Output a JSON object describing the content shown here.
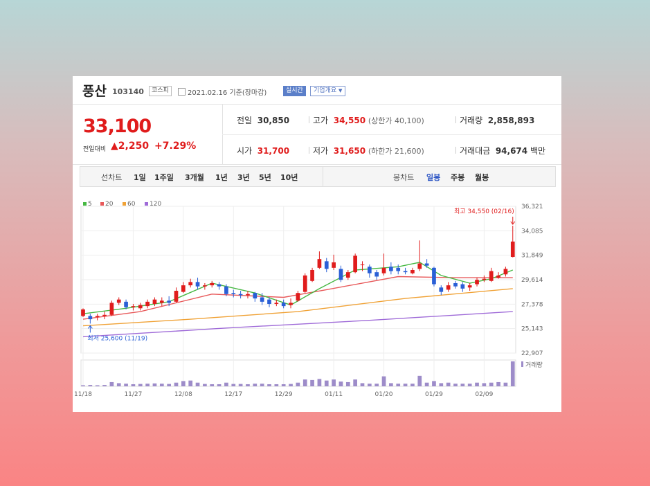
{
  "header": {
    "name": "풍산",
    "code": "103140",
    "market": "코스피",
    "date": "2021.02.16 기준(장마감)",
    "realtime": "실시간",
    "company_info": "기업개요"
  },
  "quote": {
    "price": "33,100",
    "change_label": "전일대비",
    "change_arrow": "▲",
    "change": "2,250",
    "change_pct": "+7.29%",
    "prev_label": "전일",
    "prev": "30,850",
    "high_label": "고가",
    "high": "34,550",
    "upper_limit": "(상한가 40,100)",
    "volume_label": "거래량",
    "volume": "2,858,893",
    "open_label": "시가",
    "open": "31,700",
    "low_label": "저가",
    "low": "31,650",
    "lower_limit": "(하한가 21,600)",
    "amount_label": "거래대금",
    "amount": "94,674",
    "amount_unit": "백만"
  },
  "periods": {
    "line_label": "선차트",
    "line_items": [
      "1일",
      "1주일",
      "3개월",
      "1년",
      "3년",
      "5년",
      "10년"
    ],
    "candle_label": "봉차트",
    "candle_items": [
      "일봉",
      "주봉",
      "월봉"
    ],
    "selected": "일봉"
  },
  "colors": {
    "up": "#e01c1c",
    "down": "#2a5fd6",
    "ma5": "#46b843",
    "ma20": "#e8595a",
    "ma60": "#f0a236",
    "ma120": "#9f6bd8",
    "volume": "#9d8cc9"
  },
  "chart_data": {
    "type": "candlestick",
    "legend": [
      "5",
      "20",
      "60",
      "120"
    ],
    "y_ticks": [
      "36,321",
      "34,085",
      "31,849",
      "29,614",
      "27,378",
      "25,143",
      "22,907"
    ],
    "ylim": [
      22907,
      36321
    ],
    "x_ticks": [
      "11/18",
      "11/27",
      "12/08",
      "12/17",
      "12/29",
      "01/11",
      "01/20",
      "01/29",
      "02/09"
    ],
    "x_tick_index": [
      0,
      7,
      14,
      21,
      28,
      35,
      42,
      49,
      56
    ],
    "high_annotation": "최고 34,550 (02/16)",
    "low_annotation": "최저 25,600 (11/19)",
    "volume_label": "거래량",
    "candles": [
      [
        26300,
        26900,
        26200,
        27000
      ],
      [
        26300,
        26000,
        25600,
        26500
      ],
      [
        26200,
        26300,
        25900,
        26500
      ],
      [
        26300,
        26400,
        26000,
        26700
      ],
      [
        26400,
        27500,
        26300,
        27700
      ],
      [
        27500,
        27800,
        27300,
        28000
      ],
      [
        27600,
        27100,
        26900,
        27800
      ],
      [
        27100,
        27200,
        26800,
        27400
      ],
      [
        27000,
        27300,
        26800,
        27500
      ],
      [
        27200,
        27600,
        27000,
        27800
      ],
      [
        27400,
        27800,
        27200,
        28000
      ],
      [
        27500,
        27700,
        27200,
        28000
      ],
      [
        27700,
        27500,
        27200,
        28100
      ],
      [
        27600,
        28600,
        27500,
        28900
      ],
      [
        28500,
        29100,
        28400,
        29400
      ],
      [
        29100,
        29400,
        28900,
        29700
      ],
      [
        29400,
        29000,
        28700,
        29800
      ],
      [
        29000,
        29100,
        28700,
        29300
      ],
      [
        29100,
        29300,
        28900,
        29500
      ],
      [
        29200,
        29000,
        28700,
        29400
      ],
      [
        29000,
        28300,
        28100,
        29200
      ],
      [
        28400,
        28300,
        28000,
        28700
      ],
      [
        28300,
        28200,
        27900,
        28600
      ],
      [
        28200,
        28300,
        27900,
        28600
      ],
      [
        28400,
        27900,
        27600,
        28500
      ],
      [
        28000,
        27600,
        27300,
        28400
      ],
      [
        27800,
        27400,
        27100,
        28000
      ],
      [
        27400,
        27500,
        27200,
        27800
      ],
      [
        27500,
        27200,
        27000,
        27800
      ],
      [
        27300,
        27500,
        27000,
        27900
      ],
      [
        27700,
        28400,
        27600,
        28600
      ],
      [
        28500,
        30000,
        28400,
        30200
      ],
      [
        29500,
        30500,
        29400,
        30700
      ],
      [
        30700,
        31500,
        30600,
        32200
      ],
      [
        31300,
        30600,
        30300,
        31600
      ],
      [
        30700,
        31200,
        30500,
        31900
      ],
      [
        30600,
        29600,
        29400,
        30900
      ],
      [
        29800,
        30300,
        29600,
        30500
      ],
      [
        30300,
        31800,
        30200,
        32000
      ],
      [
        31000,
        31000,
        30400,
        31300
      ],
      [
        30800,
        30200,
        29800,
        31000
      ],
      [
        30300,
        29900,
        29600,
        30500
      ],
      [
        30200,
        30700,
        30000,
        32000
      ],
      [
        30800,
        30400,
        30100,
        31200
      ],
      [
        30700,
        30400,
        30100,
        31000
      ],
      [
        30400,
        30300,
        30100,
        30700
      ],
      [
        30200,
        30500,
        30100,
        30700
      ],
      [
        30600,
        31100,
        30400,
        33200
      ],
      [
        31100,
        30900,
        30700,
        31500
      ],
      [
        30700,
        29200,
        29000,
        30800
      ],
      [
        28900,
        28500,
        28200,
        29100
      ],
      [
        28700,
        29100,
        28500,
        29400
      ],
      [
        29300,
        29000,
        28800,
        29500
      ],
      [
        29200,
        28800,
        28500,
        29400
      ],
      [
        28900,
        29100,
        28600,
        29300
      ],
      [
        29200,
        29600,
        29000,
        29800
      ],
      [
        29600,
        29700,
        29400,
        30000
      ],
      [
        29500,
        30400,
        29400,
        30700
      ],
      [
        29800,
        30000,
        29700,
        30300
      ],
      [
        30100,
        30600,
        29900,
        30800
      ],
      [
        31700,
        33100,
        31650,
        34550
      ]
    ],
    "ma5": [
      [
        0,
        26500
      ],
      [
        6,
        27000
      ],
      [
        12,
        27600
      ],
      [
        18,
        29300
      ],
      [
        24,
        28400
      ],
      [
        29,
        27300
      ],
      [
        33,
        28800
      ],
      [
        38,
        30500
      ],
      [
        44,
        30800
      ],
      [
        47,
        31200
      ],
      [
        50,
        30000
      ],
      [
        54,
        29300
      ],
      [
        57,
        29700
      ],
      [
        60,
        30500
      ]
    ],
    "ma20": [
      [
        0,
        26000
      ],
      [
        8,
        26700
      ],
      [
        18,
        28300
      ],
      [
        28,
        28000
      ],
      [
        34,
        28700
      ],
      [
        44,
        29900
      ],
      [
        52,
        29800
      ],
      [
        60,
        29800
      ]
    ],
    "ma60": [
      [
        0,
        25400
      ],
      [
        15,
        26000
      ],
      [
        30,
        26700
      ],
      [
        45,
        27900
      ],
      [
        60,
        28800
      ]
    ],
    "ma120": [
      [
        0,
        24400
      ],
      [
        20,
        25200
      ],
      [
        40,
        25900
      ],
      [
        60,
        26700
      ]
    ],
    "volumes": [
      4,
      5,
      4,
      5,
      16,
      12,
      10,
      8,
      9,
      10,
      11,
      10,
      9,
      14,
      20,
      22,
      14,
      9,
      8,
      8,
      14,
      9,
      9,
      8,
      10,
      10,
      8,
      8,
      8,
      9,
      14,
      26,
      24,
      28,
      22,
      26,
      18,
      16,
      26,
      12,
      10,
      10,
      38,
      12,
      10,
      10,
      10,
      40,
      14,
      20,
      12,
      14,
      10,
      10,
      10,
      14,
      12,
      14,
      16,
      14,
      95
    ]
  }
}
